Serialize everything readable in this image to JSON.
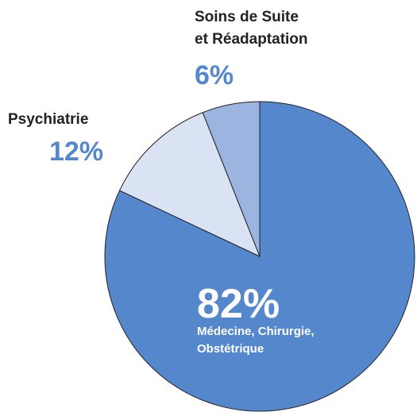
{
  "chart_data": {
    "type": "pie",
    "categories": [
      [
        "Médecine, Chirurgie,",
        "Obstétrique"
      ],
      [
        "Psychiatrie"
      ],
      [
        "Soins de Suite",
        "et Réadaptation"
      ]
    ],
    "values": [
      82,
      12,
      6
    ],
    "value_labels": [
      "82%",
      "12%",
      "6%"
    ],
    "colors": [
      "#5587cc",
      "#dae3f3",
      "#9cb4e0"
    ]
  }
}
